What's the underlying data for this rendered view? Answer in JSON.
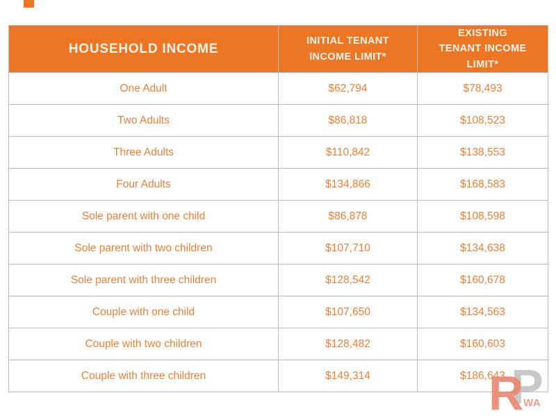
{
  "table": {
    "columns": [
      {
        "label": "HOUSEHOLD INCOME"
      },
      {
        "label": "INITIAL TENANT INCOME LIMIT*"
      },
      {
        "label": "EXISTING TENANT INCOME LIMIT*"
      }
    ],
    "rows": [
      {
        "household": "One Adult",
        "initial": "$62,794",
        "existing": "$78,493"
      },
      {
        "household": "Two Adults",
        "initial": "$86,818",
        "existing": "$108,523"
      },
      {
        "household": "Three Adults",
        "initial": "$110,842",
        "existing": "$138,553"
      },
      {
        "household": "Four Adults",
        "initial": "$134,866",
        "existing": "$168,583"
      },
      {
        "household": "Sole parent with one child",
        "initial": "$86,878",
        "existing": "$108,598"
      },
      {
        "household": "Sole parent with two children",
        "initial": "$107,710",
        "existing": "$134,638"
      },
      {
        "household": "Sole parent with three children",
        "initial": "$128,542",
        "existing": "$160,678"
      },
      {
        "household": "Couple with one child",
        "initial": "$107,650",
        "existing": "$134,563"
      },
      {
        "household": "Couple with two children",
        "initial": "$128,482",
        "existing": "$160,603"
      },
      {
        "household": "Couple with three children",
        "initial": "$149,314",
        "existing": "$186,643"
      }
    ]
  },
  "watermark": {
    "letter_r": "R",
    "letter_p": "P",
    "suffix": "WA"
  },
  "colors": {
    "header_bg": "#ED7625",
    "header_text": "#FBF4EA",
    "body_text": "#E8813B",
    "border": "#B9B9B9",
    "top_mark": "#EE7524",
    "logo_red": "#E98972",
    "logo_gray": "#C8C8C9"
  }
}
